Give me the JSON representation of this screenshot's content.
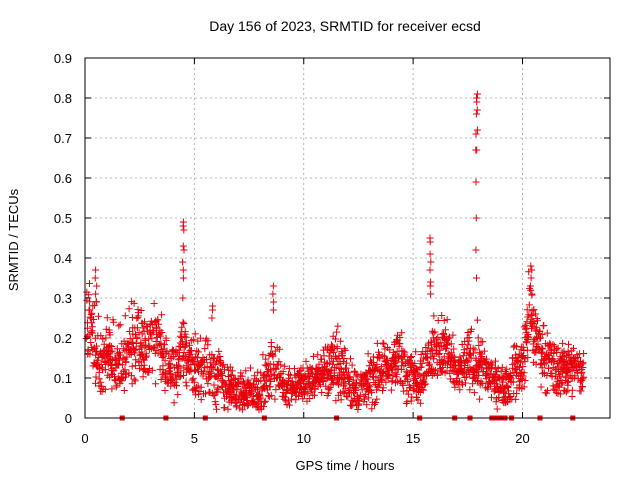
{
  "chart_data": {
    "type": "scatter",
    "title": "Day 156 of 2023, SRMTID for receiver ecsd",
    "xlabel": "GPS time / hours",
    "ylabel": "SRMTID / TECUs",
    "xlim": [
      0,
      24
    ],
    "ylim": [
      0,
      0.9
    ],
    "x_ticks": [
      "0",
      "5",
      "10",
      "15",
      "20"
    ],
    "x_tick_values": [
      0,
      5,
      10,
      15,
      20
    ],
    "y_ticks": [
      "0",
      "0.1",
      "0.2",
      "0.3",
      "0.4",
      "0.5",
      "0.6",
      "0.7",
      "0.8",
      "0.9"
    ],
    "y_tick_values": [
      0,
      0.1,
      0.2,
      0.3,
      0.4,
      0.5,
      0.6,
      0.7,
      0.8,
      0.9
    ],
    "grid": true,
    "marker": "plus",
    "series_color": "#e8000b",
    "series": [
      {
        "name": "SRMTID",
        "profile_hours": [
          0.0,
          0.2,
          0.4,
          0.6,
          0.8,
          1.0,
          1.3,
          1.6,
          2.0,
          2.4,
          2.8,
          3.2,
          3.6,
          4.0,
          4.3,
          4.6,
          4.8,
          5.0,
          5.3,
          5.6,
          6.0,
          6.5,
          7.0,
          7.5,
          8.0,
          8.4,
          8.6,
          9.0,
          9.5,
          10.0,
          10.5,
          11.0,
          11.5,
          12.0,
          12.5,
          13.0,
          13.5,
          14.0,
          14.5,
          15.0,
          15.5,
          16.0,
          16.5,
          17.0,
          17.5,
          17.9,
          18.3,
          18.7,
          19.2,
          19.6,
          20.0,
          20.3,
          20.6,
          21.0,
          21.5,
          22.0,
          22.5,
          22.8
        ],
        "profile_median": [
          0.22,
          0.26,
          0.2,
          0.16,
          0.15,
          0.16,
          0.14,
          0.13,
          0.17,
          0.19,
          0.17,
          0.2,
          0.16,
          0.11,
          0.14,
          0.17,
          0.15,
          0.13,
          0.12,
          0.13,
          0.1,
          0.08,
          0.06,
          0.06,
          0.07,
          0.1,
          0.14,
          0.08,
          0.08,
          0.09,
          0.1,
          0.12,
          0.14,
          0.1,
          0.06,
          0.09,
          0.12,
          0.13,
          0.15,
          0.1,
          0.12,
          0.17,
          0.18,
          0.1,
          0.14,
          0.15,
          0.12,
          0.09,
          0.08,
          0.11,
          0.13,
          0.26,
          0.2,
          0.16,
          0.12,
          0.13,
          0.12,
          0.12
        ],
        "profile_spread": [
          0.05,
          0.06,
          0.06,
          0.05,
          0.05,
          0.05,
          0.05,
          0.05,
          0.06,
          0.06,
          0.05,
          0.06,
          0.05,
          0.04,
          0.04,
          0.05,
          0.05,
          0.05,
          0.05,
          0.05,
          0.05,
          0.04,
          0.03,
          0.03,
          0.04,
          0.04,
          0.05,
          0.03,
          0.03,
          0.03,
          0.03,
          0.04,
          0.05,
          0.04,
          0.03,
          0.04,
          0.04,
          0.04,
          0.05,
          0.04,
          0.04,
          0.05,
          0.05,
          0.04,
          0.04,
          0.05,
          0.04,
          0.03,
          0.03,
          0.04,
          0.04,
          0.06,
          0.05,
          0.05,
          0.04,
          0.04,
          0.04,
          0.04
        ],
        "peaks": [
          {
            "x": 0.5,
            "values": [
              0.29,
              0.31,
              0.33,
              0.35,
              0.37
            ]
          },
          {
            "x": 4.5,
            "values": [
              0.3,
              0.35,
              0.37,
              0.39,
              0.42,
              0.43,
              0.47,
              0.48,
              0.49
            ]
          },
          {
            "x": 5.8,
            "values": [
              0.25,
              0.27,
              0.28
            ]
          },
          {
            "x": 8.6,
            "values": [
              0.27,
              0.29,
              0.31,
              0.33
            ]
          },
          {
            "x": 15.8,
            "values": [
              0.31,
              0.33,
              0.34,
              0.37,
              0.39,
              0.41,
              0.44,
              0.45
            ]
          },
          {
            "x": 17.9,
            "values": [
              0.35,
              0.42,
              0.5,
              0.59,
              0.67,
              0.67,
              0.71,
              0.72,
              0.76,
              0.77,
              0.79,
              0.8,
              0.81
            ]
          },
          {
            "x": 20.4,
            "values": [
              0.31,
              0.33,
              0.35,
              0.37,
              0.38
            ]
          }
        ]
      }
    ],
    "flag_markers_hours": [
      1.7,
      3.7,
      5.5,
      8.2,
      11.5,
      15.3,
      16.9,
      17.6,
      18.6,
      18.8,
      19.0,
      19.2,
      19.5,
      20.8,
      22.3
    ]
  }
}
